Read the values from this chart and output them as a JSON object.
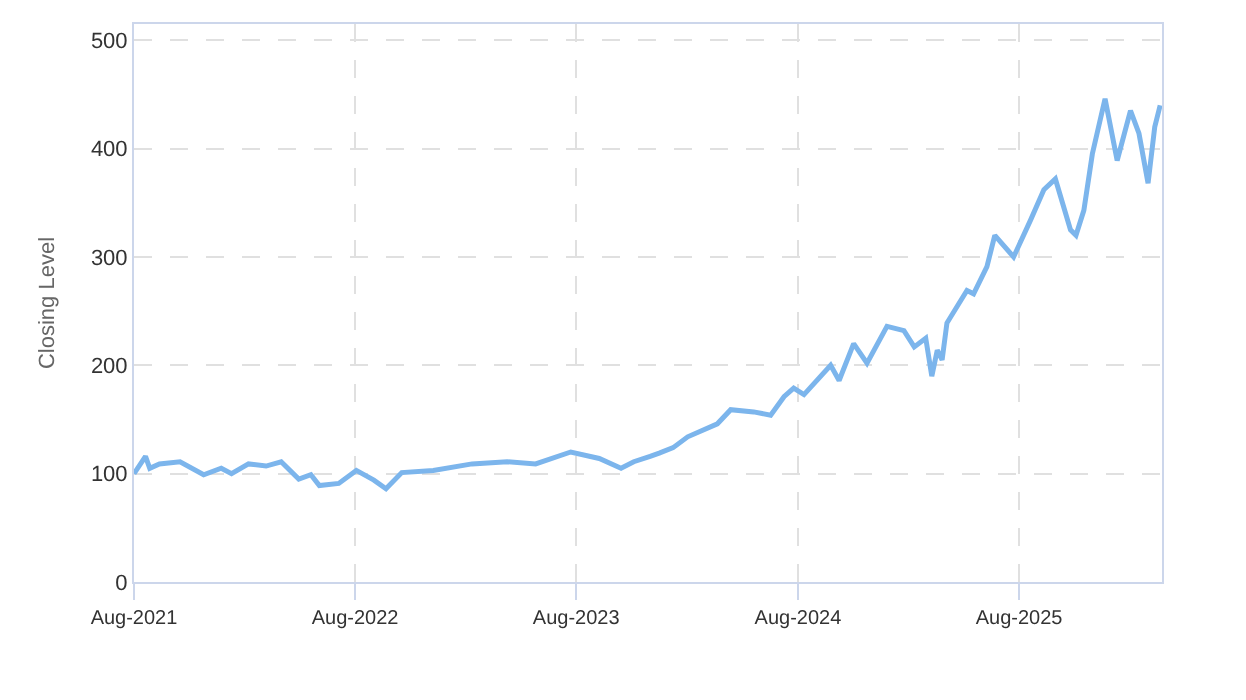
{
  "chart_data": {
    "type": "line",
    "ylabel": "Closing Level",
    "x": [
      "2021-08-01",
      "2021-08-20",
      "2021-08-27",
      "2021-09-12",
      "2021-10-16",
      "2021-11-24",
      "2021-12-23",
      "2022-01-09",
      "2022-02-06",
      "2022-03-07",
      "2022-04-01",
      "2022-04-30",
      "2022-05-20",
      "2022-06-03",
      "2022-07-05",
      "2022-08-03",
      "2022-09-01",
      "2022-09-21",
      "2022-10-17",
      "2022-12-08",
      "2023-02-10",
      "2023-04-09",
      "2023-05-26",
      "2023-07-23",
      "2023-09-08",
      "2023-10-14",
      "2023-11-04",
      "2023-12-01",
      "2023-12-16",
      "2024-01-08",
      "2024-02-01",
      "2024-03-21",
      "2024-04-12",
      "2024-05-20",
      "2024-06-17",
      "2024-07-09",
      "2024-07-25",
      "2024-08-11",
      "2024-09-24",
      "2024-10-08",
      "2024-11-01",
      "2024-11-23",
      "2024-12-26",
      "2025-01-23",
      "2025-02-09",
      "2025-02-28",
      "2025-03-10",
      "2025-03-19",
      "2025-03-27",
      "2025-04-04",
      "2025-05-07",
      "2025-05-18",
      "2025-06-09",
      "2025-06-22",
      "2025-07-23",
      "2025-08-20",
      "2025-09-11",
      "2025-09-30",
      "2025-10-25",
      "2025-11-03",
      "2025-11-16",
      "2025-11-30",
      "2025-12-21",
      "2026-01-10",
      "2026-02-01",
      "2026-02-15",
      "2026-03-02",
      "2026-03-13",
      "2026-03-22"
    ],
    "series": [
      {
        "color": "#7cb5ec",
        "values": [
          100,
          116,
          105,
          109,
          111,
          99,
          105,
          100,
          109,
          107,
          111,
          95,
          99,
          89,
          91,
          103,
          94,
          86,
          101,
          103,
          109,
          111,
          109,
          120,
          114,
          105,
          111,
          116,
          119,
          124,
          134,
          146,
          159,
          157,
          154,
          171,
          179,
          173,
          200,
          186,
          220,
          202,
          236,
          232,
          217,
          225,
          190,
          214,
          205,
          239,
          269,
          266,
          291,
          320,
          300,
          334,
          362,
          372,
          325,
          320,
          343,
          395,
          446,
          389,
          435,
          414,
          368,
          420,
          440
        ]
      }
    ],
    "xlim": [
      "2021-08-01",
      "2026-03-25"
    ],
    "xticks": [
      {
        "value": "2021-08-01",
        "label": "Aug-2021"
      },
      {
        "value": "2022-08-01",
        "label": "Aug-2022"
      },
      {
        "value": "2023-08-01",
        "label": "Aug-2023"
      },
      {
        "value": "2024-08-01",
        "label": "Aug-2024"
      },
      {
        "value": "2025-08-01",
        "label": "Aug-2025"
      }
    ],
    "ylim": [
      0,
      515
    ],
    "yticks": [
      0,
      100,
      200,
      300,
      400,
      500
    ],
    "grid": true,
    "marker": "none",
    "line_style": "solid"
  }
}
